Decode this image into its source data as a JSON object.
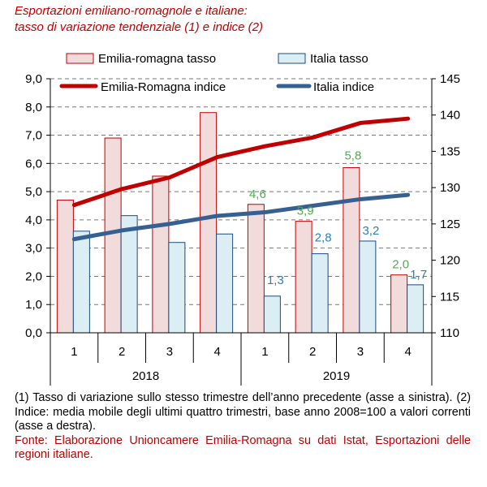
{
  "title": {
    "line1": "Esportazioni emiliano-romagnole e italiane:",
    "line2": "tasso di variazione tendenziale (1) e indice (2)"
  },
  "legend": {
    "er_tasso": "Emilia-romagna tasso",
    "it_tasso": "Italia tasso",
    "er_indice": "Emilia-Romagna indice",
    "it_indice": "Italia indice"
  },
  "notes": {
    "note": "(1) Tasso di variazione sullo stesso trimestre dell’anno precedente (asse a sinistra). (2) Indice: media mobile degli ultimi quattro trimestri, base anno 2008=100 a valori correnti (asse a destra).",
    "source": "Fonte: Elaborazione Unioncamere Emilia-Romagna su dati Istat, Esportazioni delle regioni italiane."
  },
  "colors": {
    "er_bar_fill": "#f2dcdb",
    "er_bar_stroke": "#c00000",
    "it_bar_fill": "#dbeef3",
    "it_bar_stroke": "#1f497d",
    "er_line": "#c00000",
    "it_line": "#366092",
    "label_green": "#4cae4c",
    "label_blue": "#2f7fb6"
  },
  "chart_data": {
    "type": "bar",
    "categories": [
      "1",
      "2",
      "3",
      "4",
      "1",
      "2",
      "3",
      "4"
    ],
    "groups": [
      {
        "label": "2018",
        "count": 4
      },
      {
        "label": "2019",
        "count": 4
      }
    ],
    "series": [
      {
        "name": "Emilia-romagna tasso",
        "axis": "left",
        "kind": "bar",
        "values": [
          4.7,
          6.9,
          5.55,
          7.8,
          4.55,
          3.95,
          5.85,
          2.05
        ]
      },
      {
        "name": "Italia tasso",
        "axis": "left",
        "kind": "bar",
        "values": [
          3.6,
          4.15,
          3.2,
          3.5,
          1.3,
          2.8,
          3.25,
          1.7
        ]
      },
      {
        "name": "Emilia-Romagna indice",
        "axis": "right",
        "kind": "line",
        "values": [
          127.6,
          129.8,
          131.4,
          134.2,
          135.7,
          136.9,
          138.9,
          139.5
        ]
      },
      {
        "name": "Italia indice",
        "axis": "right",
        "kind": "line",
        "values": [
          122.9,
          124.1,
          125.0,
          126.1,
          126.6,
          127.5,
          128.4,
          129.0
        ]
      }
    ],
    "data_labels": [
      {
        "series": 0,
        "index": 4,
        "text": "4,6",
        "color": "green"
      },
      {
        "series": 0,
        "index": 5,
        "text": "3,9",
        "color": "green"
      },
      {
        "series": 0,
        "index": 6,
        "text": "5,8",
        "color": "green"
      },
      {
        "series": 0,
        "index": 7,
        "text": "2,0",
        "color": "green"
      },
      {
        "series": 1,
        "index": 4,
        "text": "1,3",
        "color": "blue"
      },
      {
        "series": 1,
        "index": 5,
        "text": "2,8",
        "color": "blue"
      },
      {
        "series": 1,
        "index": 6,
        "text": "3,2",
        "color": "blue"
      },
      {
        "series": 1,
        "index": 7,
        "text": "1,7",
        "color": "blue"
      }
    ],
    "y_left": {
      "min": 0,
      "max": 9,
      "step": 1,
      "tick_labels": [
        "0,0",
        "1,0",
        "2,0",
        "3,0",
        "4,0",
        "5,0",
        "6,0",
        "7,0",
        "8,0",
        "9,0"
      ]
    },
    "y_right": {
      "min": 110,
      "max": 145,
      "step": 5,
      "tick_labels": [
        "110",
        "115",
        "120",
        "125",
        "130",
        "135",
        "140",
        "145"
      ]
    },
    "grid": "dashed horizontal",
    "legend_position": "top"
  }
}
